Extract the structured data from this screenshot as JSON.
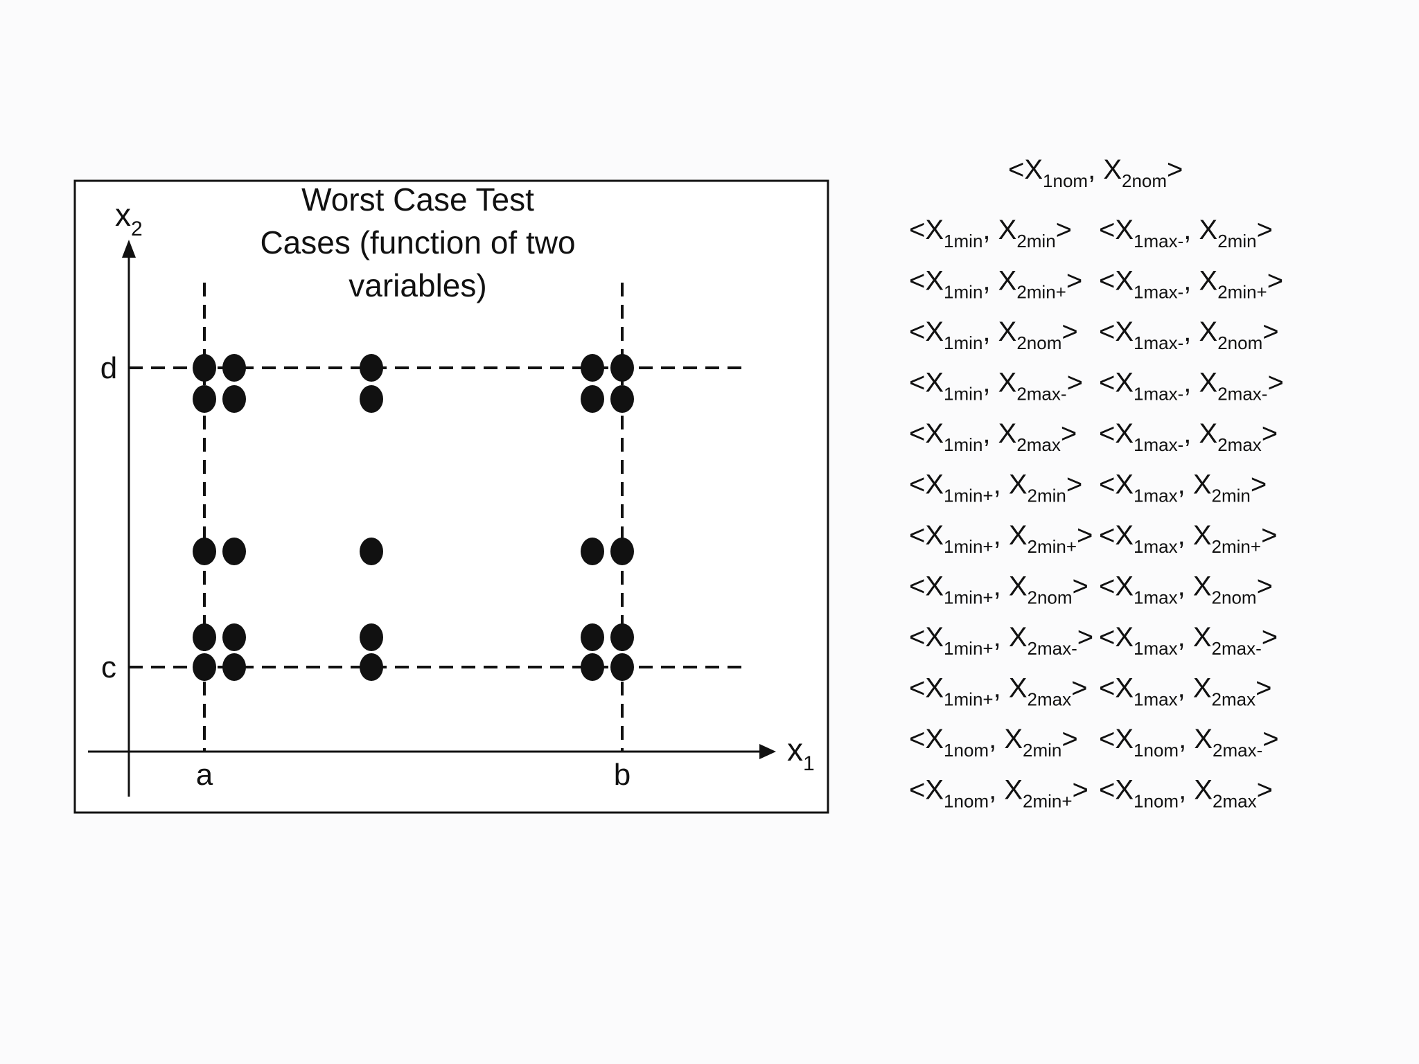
{
  "diagram": {
    "title_lines": [
      "Worst Case Test",
      "Cases (function of two",
      "variables)"
    ],
    "x_axis": {
      "base": "x",
      "sub": "1"
    },
    "y_axis": {
      "base": "x",
      "sub": "2"
    },
    "x_ticks": [
      "a",
      "b"
    ],
    "y_ticks": [
      "c",
      "d"
    ],
    "test_points": [
      {
        "x": "x1min",
        "y": "x2max"
      },
      {
        "x": "x1min+",
        "y": "x2max"
      },
      {
        "x": "x1min",
        "y": "x2max-"
      },
      {
        "x": "x1min+",
        "y": "x2max-"
      },
      {
        "x": "x1nom",
        "y": "x2max"
      },
      {
        "x": "x1nom",
        "y": "x2max-"
      },
      {
        "x": "x1max-",
        "y": "x2max"
      },
      {
        "x": "x1max",
        "y": "x2max"
      },
      {
        "x": "x1max-",
        "y": "x2max-"
      },
      {
        "x": "x1max",
        "y": "x2max-"
      },
      {
        "x": "x1min",
        "y": "x2nom"
      },
      {
        "x": "x1min+",
        "y": "x2nom"
      },
      {
        "x": "x1nom",
        "y": "x2nom"
      },
      {
        "x": "x1max-",
        "y": "x2nom"
      },
      {
        "x": "x1max",
        "y": "x2nom"
      },
      {
        "x": "x1min",
        "y": "x2min+"
      },
      {
        "x": "x1min+",
        "y": "x2min+"
      },
      {
        "x": "x1min",
        "y": "x2min"
      },
      {
        "x": "x1min+",
        "y": "x2min"
      },
      {
        "x": "x1nom",
        "y": "x2min+"
      },
      {
        "x": "x1nom",
        "y": "x2min"
      },
      {
        "x": "x1max-",
        "y": "x2min+"
      },
      {
        "x": "x1max",
        "y": "x2min+"
      },
      {
        "x": "x1max-",
        "y": "x2min"
      },
      {
        "x": "x1max",
        "y": "x2min"
      }
    ]
  },
  "test_case_list": {
    "header": [
      "1nom",
      "2nom"
    ],
    "rows": [
      [
        [
          "1min",
          "2min"
        ],
        [
          "1max-",
          "2min"
        ]
      ],
      [
        [
          "1min",
          "2min+"
        ],
        [
          "1max-",
          "2min+"
        ]
      ],
      [
        [
          "1min",
          "2nom"
        ],
        [
          "1max-",
          "2nom"
        ]
      ],
      [
        [
          "1min",
          "2max-"
        ],
        [
          "1max-",
          "2max-"
        ]
      ],
      [
        [
          "1min",
          "2max"
        ],
        [
          "1max-",
          "2max"
        ]
      ],
      [
        [
          "1min+",
          "2min"
        ],
        [
          "1max",
          "2min"
        ]
      ],
      [
        [
          "1min+",
          "2min+"
        ],
        [
          "1max",
          "2min+"
        ]
      ],
      [
        [
          "1min+",
          "2nom"
        ],
        [
          "1max",
          "2nom"
        ]
      ],
      [
        [
          "1min+",
          "2max-"
        ],
        [
          "1max",
          "2max-"
        ]
      ],
      [
        [
          "1min+",
          "2max"
        ],
        [
          "1max",
          "2max"
        ]
      ],
      [
        [
          "1nom",
          "2min"
        ],
        [
          "1nom",
          "2max-"
        ]
      ],
      [
        [
          "1nom",
          "2min+"
        ],
        [
          "1nom",
          "2max"
        ]
      ]
    ]
  }
}
